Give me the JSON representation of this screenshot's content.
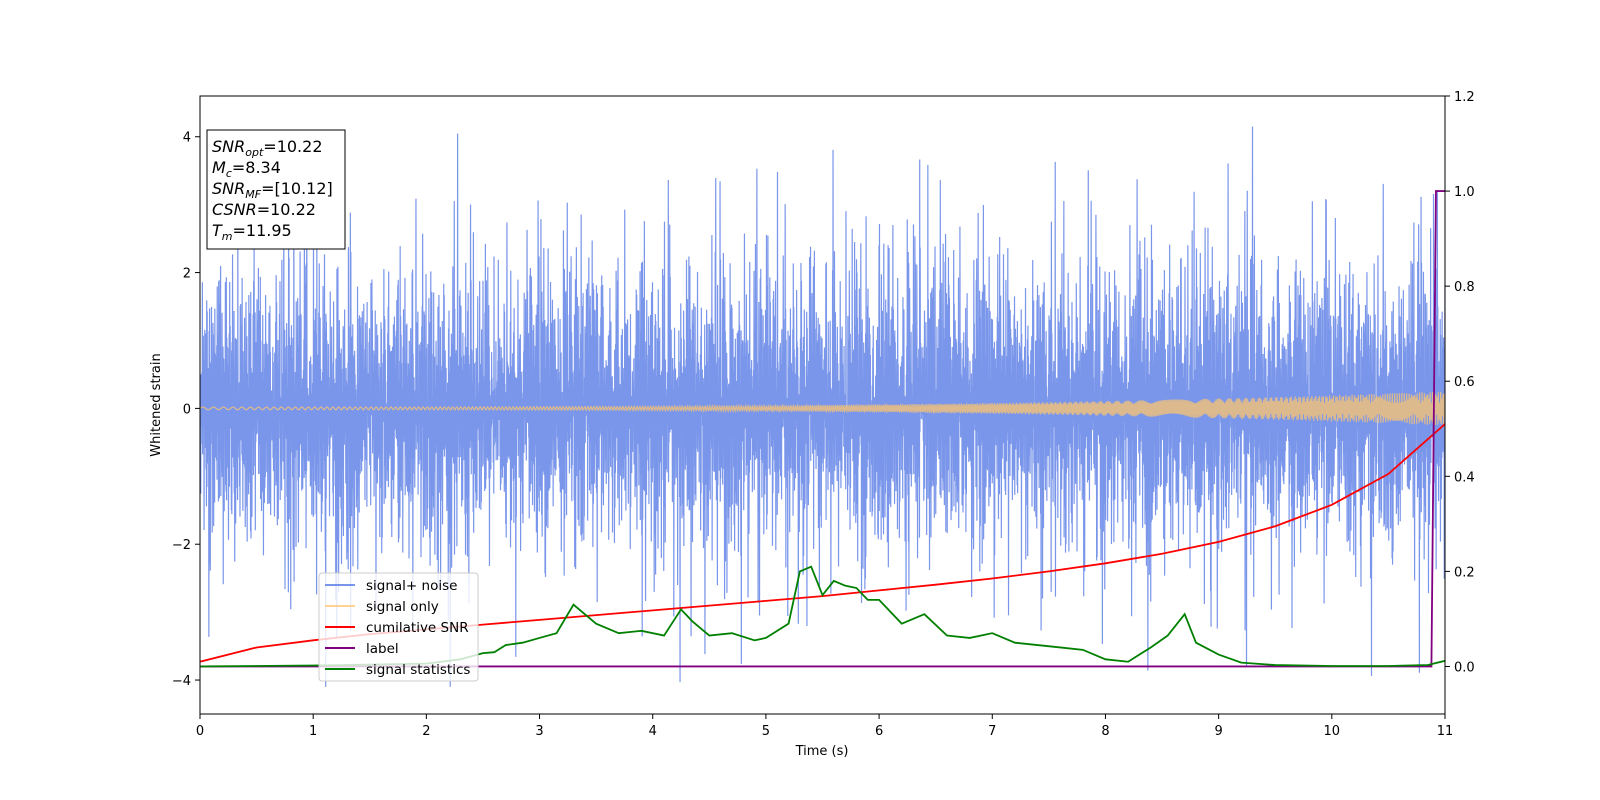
{
  "chart_data": {
    "type": "line",
    "xlabel": "Time (s)",
    "ylabel": "Whitened strain",
    "xlim": [
      0,
      11
    ],
    "ylim": [
      -4.5,
      4.6
    ],
    "y2lim": [
      -0.1,
      1.2
    ],
    "x_ticks": [
      0,
      1,
      2,
      3,
      4,
      5,
      6,
      7,
      8,
      9,
      10,
      11
    ],
    "y_ticks": [
      -4,
      -2,
      0,
      2,
      4
    ],
    "y2_ticks": [
      0.0,
      0.2,
      0.4,
      0.6,
      0.8,
      1.0,
      1.2
    ],
    "x_tick_labels": [
      "0",
      "1",
      "2",
      "3",
      "4",
      "5",
      "6",
      "7",
      "8",
      "9",
      "10",
      "11"
    ],
    "y_tick_labels": [
      "−4",
      "−2",
      "0",
      "2",
      "4"
    ],
    "y2_tick_labels": [
      "0.0",
      "0.2",
      "0.4",
      "0.6",
      "0.8",
      "1.0",
      "1.2"
    ],
    "legend_placement": "lower-left",
    "grid": false,
    "annotation": {
      "lines": [
        {
          "var": "SNR",
          "sub": "opt",
          "value": "=10.22"
        },
        {
          "var": "M",
          "sub": "c",
          "value": "=8.34"
        },
        {
          "var": "SNR",
          "sub": "MF",
          "value": "=[10.12]"
        },
        {
          "var": "CSNR",
          "sub": "",
          "value": "=10.22"
        },
        {
          "var": "T",
          "sub": "m",
          "value": "=11.95"
        }
      ]
    },
    "series": [
      {
        "name": "signal+ noise",
        "color": "#4169e1",
        "axis": "left",
        "kind": "noise",
        "sigma": 1.0,
        "typical_peak": 2.2,
        "max_peak": 4.15,
        "min_trough": -4.1
      },
      {
        "name": "signal only",
        "color": "#ffc66e",
        "axis": "left",
        "kind": "chirp",
        "amplitude_start": 0.02,
        "amplitude_end": 0.25
      },
      {
        "name": "cumilative SNR",
        "color": "#ff0000",
        "axis": "right",
        "x": [
          0,
          0.5,
          1,
          1.5,
          2,
          2.5,
          3,
          3.5,
          4,
          4.5,
          5,
          5.5,
          6,
          6.5,
          7,
          7.5,
          8,
          8.5,
          9,
          9.5,
          10,
          10.5,
          11
        ],
        "y": [
          0.01,
          0.04,
          0.055,
          0.068,
          0.078,
          0.088,
          0.098,
          0.108,
          0.118,
          0.128,
          0.138,
          0.148,
          0.16,
          0.172,
          0.185,
          0.2,
          0.217,
          0.237,
          0.262,
          0.295,
          0.34,
          0.405,
          0.51
        ]
      },
      {
        "name": "label",
        "color": "#800080",
        "axis": "right",
        "x": [
          0,
          10.88,
          10.92,
          11
        ],
        "y": [
          0,
          0,
          1,
          1
        ]
      },
      {
        "name": "signal statistics",
        "color": "#008000",
        "axis": "right",
        "x": [
          0,
          1,
          2,
          2.3,
          2.5,
          2.6,
          2.7,
          2.85,
          3.0,
          3.15,
          3.3,
          3.5,
          3.7,
          3.9,
          4.1,
          4.25,
          4.35,
          4.5,
          4.7,
          4.9,
          5.0,
          5.2,
          5.3,
          5.4,
          5.5,
          5.6,
          5.7,
          5.8,
          5.9,
          6.0,
          6.2,
          6.4,
          6.6,
          6.8,
          7.0,
          7.2,
          7.4,
          7.6,
          7.8,
          8.0,
          8.2,
          8.4,
          8.55,
          8.7,
          8.8,
          9.0,
          9.2,
          9.5,
          10.0,
          10.5,
          10.85,
          11
        ],
        "y": [
          0.0,
          0.002,
          0.006,
          0.015,
          0.028,
          0.03,
          0.045,
          0.05,
          0.06,
          0.07,
          0.13,
          0.09,
          0.07,
          0.075,
          0.065,
          0.12,
          0.095,
          0.065,
          0.07,
          0.055,
          0.06,
          0.09,
          0.2,
          0.21,
          0.15,
          0.18,
          0.17,
          0.165,
          0.14,
          0.14,
          0.09,
          0.11,
          0.065,
          0.06,
          0.07,
          0.05,
          0.045,
          0.04,
          0.035,
          0.015,
          0.01,
          0.04,
          0.065,
          0.11,
          0.05,
          0.025,
          0.008,
          0.003,
          0.001,
          0.001,
          0.003,
          0.012
        ]
      }
    ]
  }
}
